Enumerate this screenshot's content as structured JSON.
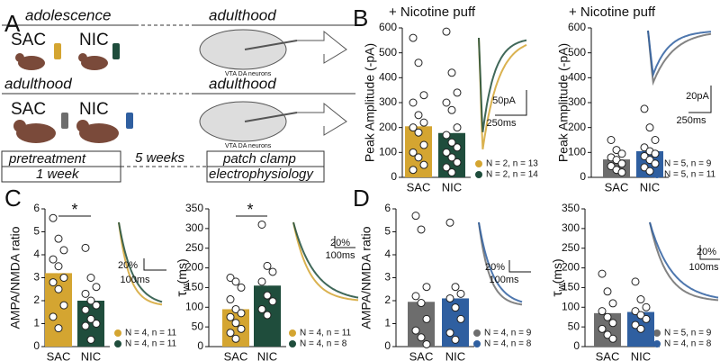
{
  "panel_labels": [
    "A",
    "B",
    "C",
    "D"
  ],
  "panel_a": {
    "rows": [
      {
        "left": "adolescence",
        "right": "adulthood",
        "groups": [
          "SAC",
          "NIC"
        ],
        "group_colors": [
          "#d4a531",
          "#1f4d3c"
        ],
        "region": "VTA DA neurons"
      },
      {
        "left": "adulthood",
        "right": "adulthood",
        "groups": [
          "SAC",
          "NIC"
        ],
        "group_colors": [
          "#6d6d6d",
          "#2f5fa0"
        ],
        "region": "VTA DA neurons"
      }
    ],
    "timeline": {
      "pretreatment": "pretreatment",
      "pretreatment_duration": "1 week",
      "interval": "5 weeks",
      "recording": "patch clamp",
      "recording_method": "electrophysiology"
    }
  },
  "chart_data": [
    {
      "type": "bar",
      "title": "+ Nicotine puff",
      "y_label": "Peak Amplitude (-pA)",
      "categories": [
        "SAC",
        "NIC"
      ],
      "values": [
        205,
        178
      ],
      "errors": [
        45,
        45
      ],
      "colors": [
        "#d4a531",
        "#1f4d3c"
      ],
      "points": [
        [
          560,
          460,
          330,
          300,
          250,
          220,
          200,
          180,
          130,
          100,
          80,
          50,
          30
        ],
        [
          585,
          420,
          340,
          300,
          270,
          200,
          170,
          140,
          120,
          100,
          80,
          60,
          40,
          20
        ]
      ],
      "ylim": [
        0,
        600
      ],
      "yticks": [
        0,
        100,
        200,
        300,
        400,
        500,
        600
      ],
      "legend": [
        "N = 2, n = 13",
        "N = 2, n = 14"
      ],
      "scale_bar": [
        "50pA",
        "250ms"
      ]
    },
    {
      "type": "bar",
      "title": "+ Nicotine puff",
      "y_label": "Peak Amplitude (-pA)",
      "categories": [
        "SAC",
        "NIC"
      ],
      "values": [
        72,
        105
      ],
      "errors": [
        20,
        22
      ],
      "colors": [
        "#6d6d6d",
        "#2f5fa0"
      ],
      "points": [
        [
          150,
          110,
          95,
          80,
          70,
          55,
          45,
          30,
          20
        ],
        [
          275,
          200,
          150,
          120,
          105,
          95,
          85,
          70,
          55,
          40,
          25
        ]
      ],
      "ylim": [
        0,
        600
      ],
      "yticks": [
        0,
        100,
        200,
        300,
        400,
        500,
        600
      ],
      "legend": [
        "N = 5, n = 9",
        "N = 5, n = 11"
      ],
      "scale_bar": [
        "20pA",
        "250ms"
      ]
    },
    {
      "type": "bar",
      "y_label": "AMPA/NMDA ratio",
      "categories": [
        "SAC",
        "NIC"
      ],
      "values": [
        3.2,
        2.0
      ],
      "errors": [
        0.4,
        0.35
      ],
      "colors": [
        "#d4a531",
        "#1f4d3c"
      ],
      "points": [
        [
          5.6,
          4.7,
          4.2,
          3.8,
          3.5,
          3.0,
          2.8,
          2.5,
          1.8,
          1.3,
          0.8
        ],
        [
          4.3,
          3.0,
          2.6,
          2.3,
          2.0,
          1.8,
          1.6,
          1.2,
          1.0,
          0.9,
          0.3
        ]
      ],
      "ylim": [
        0,
        6
      ],
      "yticks": [
        0,
        1,
        2,
        3,
        4,
        5,
        6
      ],
      "legend": [
        "N = 4, n = 11",
        "N = 4, n = 11"
      ],
      "scale_bar": [
        "20%",
        "100ms"
      ],
      "annotation": "*"
    },
    {
      "type": "bar",
      "y_label": "τ",
      "y_label_sub": "w",
      "y_label_unit": "(ms)",
      "categories": [
        "SAC",
        "NIC"
      ],
      "values": [
        95,
        155
      ],
      "errors": [
        17,
        23
      ],
      "colors": [
        "#d4a531",
        "#1f4d3c"
      ],
      "points": [
        [
          175,
          165,
          150,
          120,
          95,
          85,
          75,
          60,
          45,
          35,
          20
        ],
        [
          310,
          205,
          190,
          165,
          130,
          115,
          95,
          80
        ]
      ],
      "ylim": [
        0,
        350
      ],
      "yticks": [
        0,
        50,
        100,
        150,
        200,
        250,
        300,
        350
      ],
      "legend": [
        "N = 4, n = 11",
        "N = 4, n = 8"
      ],
      "scale_bar": [
        "20%",
        "100ms"
      ],
      "annotation": "*"
    },
    {
      "type": "bar",
      "y_label": "AMPA/NMDA ratio",
      "categories": [
        "SAC",
        "NIC"
      ],
      "values": [
        1.95,
        2.1
      ],
      "errors": [
        0.6,
        0.55
      ],
      "colors": [
        "#6d6d6d",
        "#2f5fa0"
      ],
      "points": [
        [
          5.7,
          5.1,
          2.6,
          2.2,
          1.9,
          1.2,
          0.7,
          0.4,
          0.1
        ],
        [
          5.4,
          2.6,
          2.3,
          2.1,
          1.7,
          1.2,
          0.6,
          0.3
        ]
      ],
      "ylim": [
        0,
        6
      ],
      "yticks": [
        0,
        1,
        2,
        3,
        4,
        5,
        6
      ],
      "legend": [
        "N = 4, n = 9",
        "N = 4, n = 8"
      ],
      "scale_bar": [
        "20%",
        "100ms"
      ]
    },
    {
      "type": "bar",
      "y_label": "τ",
      "y_label_sub": "w",
      "y_label_unit": "(ms)",
      "categories": [
        "SAC",
        "NIC"
      ],
      "values": [
        85,
        88
      ],
      "errors": [
        16,
        15
      ],
      "colors": [
        "#6d6d6d",
        "#2f5fa0"
      ],
      "points": [
        [
          185,
          140,
          110,
          90,
          75,
          60,
          45,
          30,
          20
        ],
        [
          165,
          120,
          100,
          90,
          80,
          70,
          55,
          45
        ]
      ],
      "ylim": [
        0,
        350
      ],
      "yticks": [
        0,
        50,
        100,
        150,
        200,
        250,
        300,
        350
      ],
      "legend": [
        "N = 5, n = 9",
        "N = 4, n = 8"
      ],
      "scale_bar": [
        "20%",
        "100ms"
      ]
    }
  ]
}
